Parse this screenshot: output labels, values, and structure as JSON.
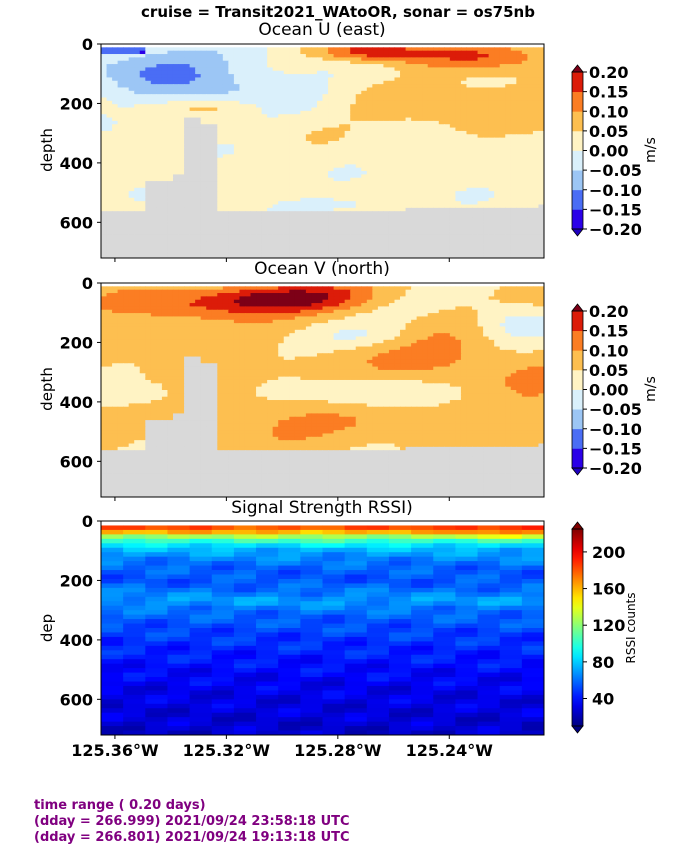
{
  "suptitle": "cruise = Transit2021_WAtoOR,  sonar = os75nb",
  "footer": {
    "line1": "time range ( 0.20 days)",
    "line2": "(dday = 266.999) 2021/09/24 23:58:18 UTC",
    "line3": "(dday = 266.801) 2021/09/24 19:13:18 UTC",
    "color": "#800080"
  },
  "chart_data": [
    {
      "type": "heatmap",
      "title": "Ocean U (east)",
      "ylabel": "depth",
      "yticks": [
        "0",
        "200",
        "400",
        "600"
      ],
      "ylim": [
        720,
        0
      ],
      "xlim": [
        -125.365,
        -125.206
      ],
      "colorbar": {
        "label": "m/s",
        "levels": [
          -0.2,
          -0.15,
          -0.1,
          -0.05,
          0.0,
          0.05,
          0.1,
          0.15,
          0.2
        ],
        "ticklabels": [
          "0.20",
          "0.15",
          "0.10",
          "0.05",
          "0.00",
          "−0.05",
          "−0.10",
          "−0.15",
          "−0.20"
        ],
        "colors": [
          "#2b00e8",
          "#4a6df5",
          "#9cc6f5",
          "#daf0fb",
          "#fff3c4",
          "#fdbf50",
          "#fb7d23",
          "#dc1c09"
        ],
        "extend_low": "#1e00c0",
        "extend_high": "#7d0017"
      },
      "mask_color": "#d9d9d9"
    },
    {
      "type": "heatmap",
      "title": "Ocean V (north)",
      "ylabel": "depth",
      "yticks": [
        "0",
        "200",
        "400",
        "600"
      ],
      "ylim": [
        720,
        0
      ],
      "xlim": [
        -125.365,
        -125.206
      ],
      "colorbar": {
        "label": "m/s",
        "levels": [
          -0.2,
          -0.15,
          -0.1,
          -0.05,
          0.0,
          0.05,
          0.1,
          0.15,
          0.2
        ],
        "ticklabels": [
          "0.20",
          "0.15",
          "0.10",
          "0.05",
          "0.00",
          "−0.05",
          "−0.10",
          "−0.15",
          "−0.20"
        ],
        "colors": [
          "#2b00e8",
          "#4a6df5",
          "#9cc6f5",
          "#daf0fb",
          "#fff3c4",
          "#fdbf50",
          "#fb7d23",
          "#dc1c09"
        ],
        "extend_low": "#1e00c0",
        "extend_high": "#7d0017"
      },
      "mask_color": "#d9d9d9"
    },
    {
      "type": "heatmap",
      "title": "Signal Strength RSSI)",
      "ylabel": "dep",
      "yticks": [
        "0",
        "200",
        "400",
        "600"
      ],
      "ylim": [
        720,
        0
      ],
      "xlim": [
        -125.365,
        -125.206
      ],
      "xticklabels": [
        "125.36°W",
        "125.32°W",
        "125.28°W",
        "125.24°W"
      ],
      "xticks": [
        -125.36,
        -125.32,
        -125.28,
        -125.24
      ],
      "colorbar": {
        "label": "RSSI counts",
        "range": [
          10,
          225
        ],
        "ticks": [
          40,
          80,
          120,
          160,
          200
        ],
        "ticklabels": [
          "40",
          "80",
          "120",
          "160",
          "200"
        ]
      },
      "rssi_profile": {
        "depths": [
          25,
          40,
          55,
          70,
          85,
          100,
          130,
          160,
          200,
          240,
          270,
          290,
          320,
          360,
          400,
          450,
          500,
          560,
          620,
          680,
          720
        ],
        "values": [
          185,
          160,
          120,
          100,
          82,
          72,
          62,
          55,
          52,
          60,
          70,
          62,
          55,
          50,
          45,
          40,
          35,
          30,
          27,
          24,
          22
        ]
      }
    }
  ]
}
